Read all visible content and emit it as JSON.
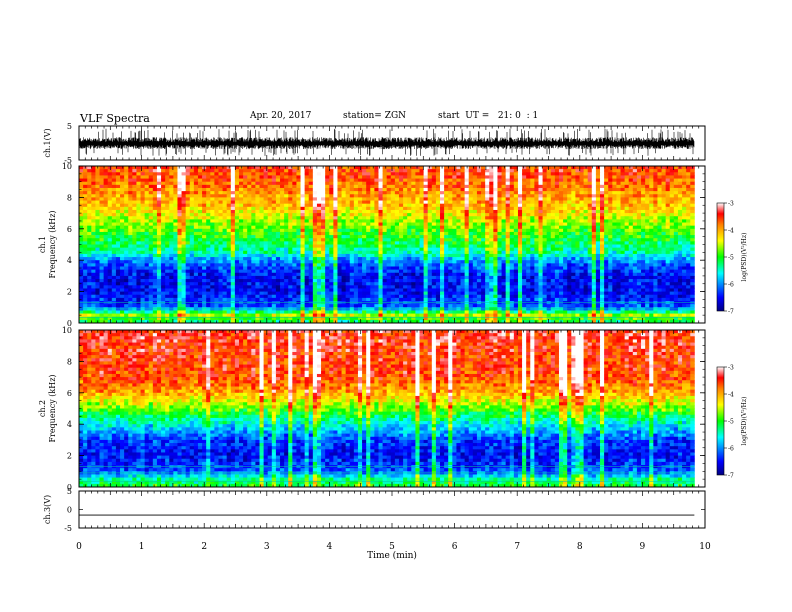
{
  "header": {
    "title": "VLF Spectra",
    "date": "Apr. 20, 2017",
    "station": "station= ZGN",
    "start": "start  UT =   21: 0  : 1"
  },
  "chart_data": [
    {
      "type": "line",
      "panel": "ch1-waveform",
      "ylabel": "ch.1(V)",
      "ylim": [
        -5,
        5
      ],
      "yticks": [
        "5",
        "-5"
      ],
      "xlim": [
        0,
        10
      ],
      "description_of_trace": "dense black noise signal between about -1.5 V and +1 V"
    },
    {
      "type": "heatmap",
      "panel": "ch1-spectrogram",
      "ylabel": "ch.1\nFrequency (kHz)",
      "ylim": [
        0,
        10
      ],
      "yticks": [
        "0",
        "2",
        "4",
        "6",
        "8",
        "10"
      ],
      "xlim": [
        0,
        10
      ],
      "data_extent_x": [
        0,
        9.83
      ],
      "colorbar": {
        "label": "log(PSD)(V²/Hz)",
        "range": [
          -7,
          -3
        ],
        "ticks": [
          "-3",
          "-4",
          "-5",
          "-6",
          "-7"
        ]
      },
      "band_profile": [
        {
          "f_khz": 0.0,
          "level": -5.3
        },
        {
          "f_khz": 0.5,
          "level": -4.6
        },
        {
          "f_khz": 1.0,
          "level": -6.2
        },
        {
          "f_khz": 2.0,
          "level": -6.5
        },
        {
          "f_khz": 3.0,
          "level": -6.5
        },
        {
          "f_khz": 4.0,
          "level": -6.0
        },
        {
          "f_khz": 4.5,
          "level": -5.4
        },
        {
          "f_khz": 5.5,
          "level": -5.0
        },
        {
          "f_khz": 6.5,
          "level": -4.6
        },
        {
          "f_khz": 7.5,
          "level": -4.1
        },
        {
          "f_khz": 9.0,
          "level": -3.7
        },
        {
          "f_khz": 10.0,
          "level": -3.5
        }
      ]
    },
    {
      "type": "heatmap",
      "panel": "ch2-spectrogram",
      "ylabel": "ch.2\nFrequency (kHz)",
      "ylim": [
        0,
        10
      ],
      "yticks": [
        "0",
        "2",
        "4",
        "6",
        "8",
        "10"
      ],
      "xlim": [
        0,
        10
      ],
      "data_extent_x": [
        0,
        9.83
      ],
      "colorbar": {
        "label": "log(PSD)(V²/Hz)",
        "range": [
          -7,
          -3
        ],
        "ticks": [
          "-3",
          "-4",
          "-5",
          "-6",
          "-7"
        ]
      },
      "band_profile": [
        {
          "f_khz": 0.0,
          "level": -5.0
        },
        {
          "f_khz": 0.5,
          "level": -5.4
        },
        {
          "f_khz": 1.0,
          "level": -6.2
        },
        {
          "f_khz": 2.0,
          "level": -6.5
        },
        {
          "f_khz": 3.0,
          "level": -6.3
        },
        {
          "f_khz": 4.0,
          "level": -5.6
        },
        {
          "f_khz": 5.0,
          "level": -4.8
        },
        {
          "f_khz": 6.0,
          "level": -4.0
        },
        {
          "f_khz": 7.0,
          "level": -3.6
        },
        {
          "f_khz": 10.0,
          "level": -3.4
        }
      ]
    },
    {
      "type": "line",
      "panel": "ch3-waveform",
      "ylabel": "ch.3(V)",
      "ylim": [
        -5,
        5
      ],
      "yticks": [
        "5",
        "0",
        "-5"
      ],
      "xlim": [
        0,
        10
      ],
      "xlabel": "Time (min)",
      "xticks": [
        "0",
        "1",
        "2",
        "3",
        "4",
        "5",
        "6",
        "7",
        "8",
        "9",
        "10"
      ],
      "flat_value": -1.5
    }
  ]
}
